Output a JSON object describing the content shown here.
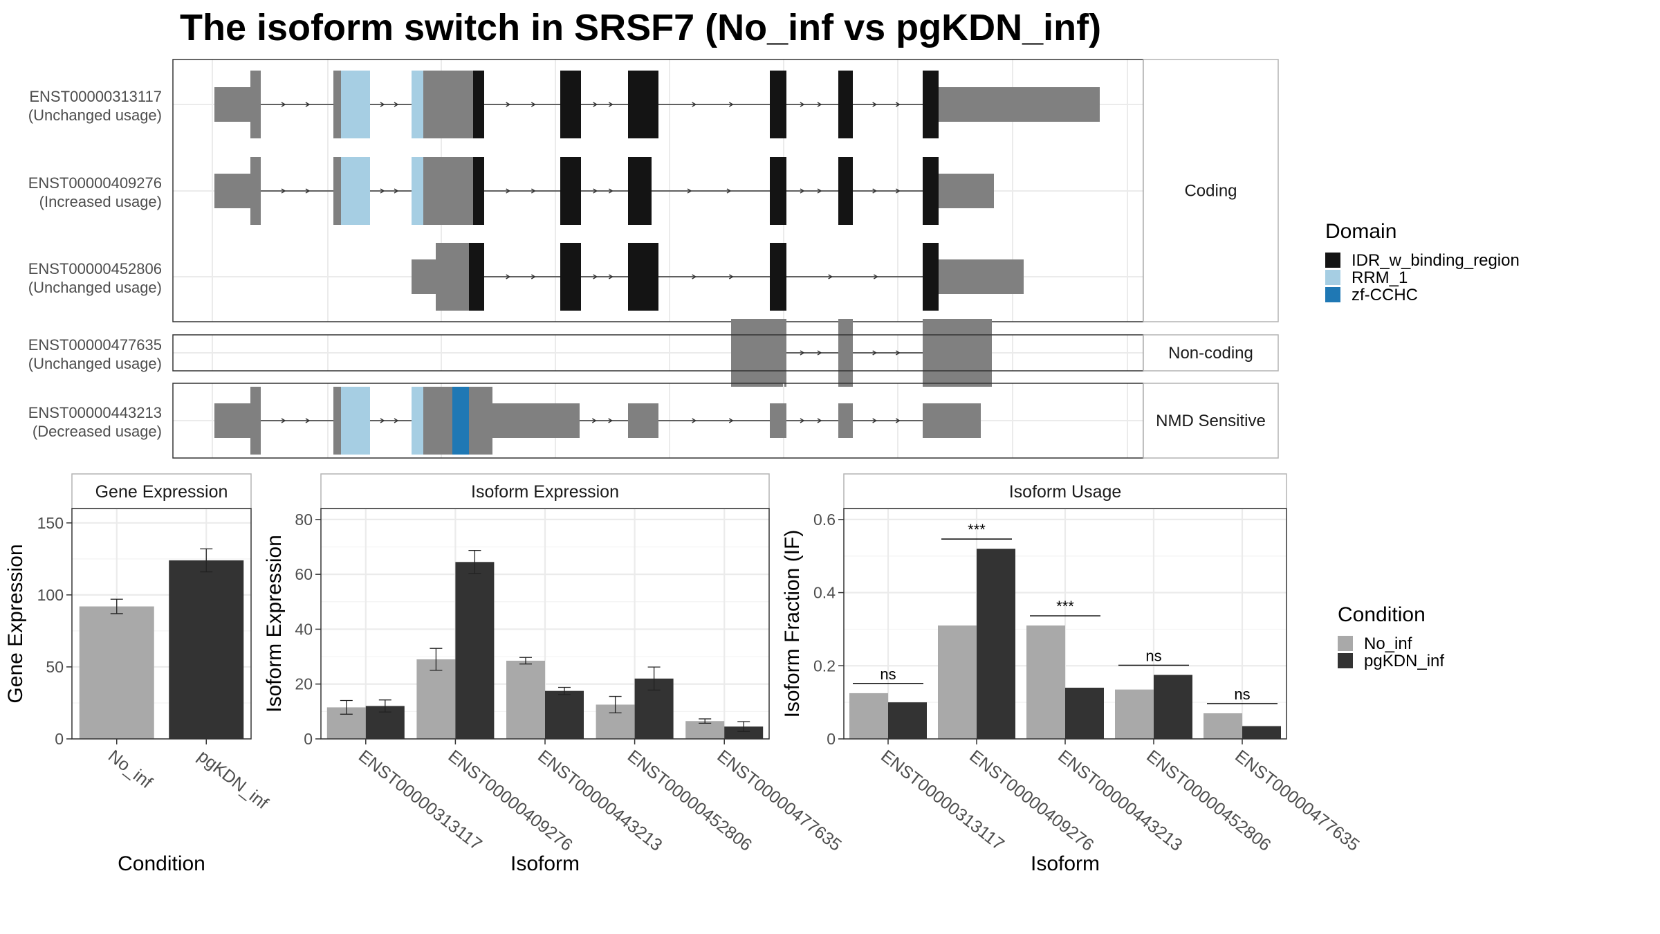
{
  "title": "The isoform switch in SRSF7 (No_inf vs pgKDN_inf)",
  "colors": {
    "idr": "#141414",
    "rrm": "#a6cee3",
    "zf": "#1f78b4",
    "utr": "#808080",
    "no_inf": "#a9a9a9",
    "pgkdn_inf": "#333333"
  },
  "chart_data": [
    {
      "type": "gene-structure",
      "title": "",
      "groups": [
        {
          "label": "Coding",
          "isoforms": [
            {
              "id": "ENST00000313117",
              "usage": "(Unchanged usage)"
            },
            {
              "id": "ENST00000409276",
              "usage": "(Increased usage)"
            },
            {
              "id": "ENST00000452806",
              "usage": "(Unchanged usage)"
            }
          ]
        },
        {
          "label": "Non-coding",
          "isoforms": [
            {
              "id": "ENST00000477635",
              "usage": "(Unchanged usage)"
            }
          ]
        },
        {
          "label": "NMD Sensitive",
          "isoforms": [
            {
              "id": "ENST00000443213",
              "usage": "(Decreased usage)"
            }
          ]
        }
      ],
      "legend": {
        "title": "Domain",
        "placement": "right",
        "entries": [
          {
            "name": "IDR_w_binding_region",
            "color": "#141414"
          },
          {
            "name": "RRM_1",
            "color": "#a6cee3"
          },
          {
            "name": "zf-CCHC",
            "color": "#1f78b4"
          }
        ]
      }
    },
    {
      "type": "bar",
      "title": "Gene Expression",
      "xlabel": "Condition",
      "ylabel": "Gene Expression",
      "categories": [
        "No_inf",
        "pgKDN_inf"
      ],
      "values": [
        92,
        124
      ],
      "errors": [
        5,
        8
      ],
      "ylim": [
        0,
        160
      ],
      "yticks": [
        0,
        50,
        100,
        150
      ],
      "grid": true
    },
    {
      "type": "bar",
      "title": "Isoform Expression",
      "xlabel": "Isoform",
      "ylabel": "Isoform Expression",
      "categories": [
        "ENST00000313117",
        "ENST00000409276",
        "ENST00000443213",
        "ENST00000452806",
        "ENST00000477635"
      ],
      "series": [
        {
          "name": "No_inf",
          "values": [
            11.5,
            29,
            28.5,
            12.5,
            6.5
          ],
          "errors": [
            2.5,
            4,
            1.2,
            3,
            0.8
          ]
        },
        {
          "name": "pgKDN_inf",
          "values": [
            12,
            64.5,
            17.5,
            22,
            4.5
          ],
          "errors": [
            2.2,
            4.2,
            1.3,
            4.2,
            1.8
          ]
        }
      ],
      "ylim": [
        0,
        84
      ],
      "yticks": [
        0,
        20,
        40,
        60,
        80
      ],
      "grid": true
    },
    {
      "type": "bar",
      "title": "Isoform Usage",
      "xlabel": "Isoform",
      "ylabel": "Isoform Fraction (IF)",
      "categories": [
        "ENST00000313117",
        "ENST00000409276",
        "ENST00000443213",
        "ENST00000452806",
        "ENST00000477635"
      ],
      "series": [
        {
          "name": "No_inf",
          "values": [
            0.125,
            0.31,
            0.31,
            0.135,
            0.07
          ]
        },
        {
          "name": "pgKDN_inf",
          "values": [
            0.1,
            0.52,
            0.14,
            0.175,
            0.035
          ]
        }
      ],
      "significance": [
        "ns",
        "***",
        "***",
        "ns",
        "ns"
      ],
      "ylim": [
        0,
        0.63
      ],
      "yticks": [
        0,
        0.2,
        0.4,
        0.6
      ],
      "grid": true,
      "legend": {
        "title": "Condition",
        "placement": "right",
        "entries": [
          {
            "name": "No_inf",
            "color": "#a9a9a9"
          },
          {
            "name": "pgKDN_inf",
            "color": "#333333"
          }
        ]
      }
    }
  ]
}
